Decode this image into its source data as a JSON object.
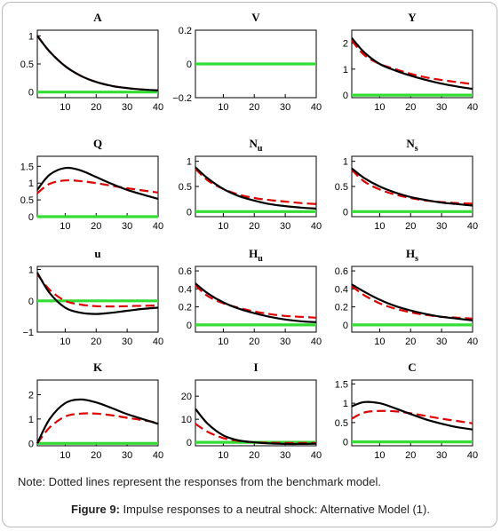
{
  "note": "Note: Dotted lines represent the responses from the benchmark model.",
  "caption": {
    "label": "Figure 9:",
    "text": " Impulse responses to a neutral shock: Alternative Model (1)."
  },
  "colors": {
    "alternative": "#000000",
    "benchmark": "#dd0000",
    "zero": "#33dd33"
  },
  "chart_data": [
    {
      "type": "line",
      "title": "A",
      "sub": "",
      "xlim": [
        1,
        40
      ],
      "ylim": [
        -0.1,
        1.1
      ],
      "xticks": [
        10,
        20,
        30,
        40
      ],
      "yticks": [
        0,
        0.5,
        1
      ],
      "ytick_labels": [
        "0",
        "0.5",
        "1"
      ],
      "x": [
        1,
        5,
        10,
        15,
        20,
        25,
        30,
        35,
        40
      ],
      "series": [
        {
          "style": "solid",
          "values": [
            1.0,
            0.72,
            0.46,
            0.29,
            0.18,
            0.11,
            0.07,
            0.045,
            0.03
          ]
        },
        {
          "style": "dashed",
          "values": [
            1.0,
            0.72,
            0.46,
            0.29,
            0.18,
            0.11,
            0.07,
            0.045,
            0.03
          ]
        },
        {
          "style": "zero",
          "values": [
            0,
            0,
            0,
            0,
            0,
            0,
            0,
            0,
            0
          ]
        }
      ]
    },
    {
      "type": "line",
      "title": "V",
      "sub": "",
      "xlim": [
        1,
        40
      ],
      "ylim": [
        -0.2,
        0.2
      ],
      "xticks": [
        10,
        20,
        30,
        40
      ],
      "yticks": [
        -0.2,
        0,
        0.2
      ],
      "ytick_labels": [
        "−0.2",
        "0",
        "0.2"
      ],
      "x": [
        1,
        40
      ],
      "series": [
        {
          "style": "zero",
          "values": [
            0,
            0
          ]
        }
      ]
    },
    {
      "type": "line",
      "title": "Y",
      "sub": "",
      "xlim": [
        1,
        40
      ],
      "ylim": [
        -0.1,
        2.5
      ],
      "xticks": [
        10,
        20,
        30,
        40
      ],
      "yticks": [
        0,
        1,
        2
      ],
      "ytick_labels": [
        "0",
        "1",
        "2"
      ],
      "x": [
        1,
        5,
        10,
        15,
        20,
        25,
        30,
        35,
        40
      ],
      "series": [
        {
          "style": "solid",
          "values": [
            2.2,
            1.65,
            1.2,
            0.95,
            0.75,
            0.58,
            0.44,
            0.33,
            0.24
          ]
        },
        {
          "style": "dashed",
          "values": [
            2.1,
            1.55,
            1.2,
            1.0,
            0.82,
            0.68,
            0.58,
            0.5,
            0.42
          ]
        },
        {
          "style": "zero",
          "values": [
            0,
            0,
            0,
            0,
            0,
            0,
            0,
            0,
            0
          ]
        }
      ]
    },
    {
      "type": "line",
      "title": "Q",
      "sub": "",
      "xlim": [
        1,
        40
      ],
      "ylim": [
        0,
        1.8
      ],
      "xticks": [
        10,
        20,
        30,
        40
      ],
      "yticks": [
        0,
        0.5,
        1,
        1.5
      ],
      "ytick_labels": [
        "0",
        "0.5",
        "1",
        "1.5"
      ],
      "x": [
        1,
        5,
        10,
        15,
        20,
        25,
        30,
        35,
        40
      ],
      "series": [
        {
          "style": "solid",
          "values": [
            0.8,
            1.25,
            1.45,
            1.38,
            1.18,
            0.98,
            0.8,
            0.66,
            0.53
          ]
        },
        {
          "style": "dashed",
          "values": [
            0.7,
            0.98,
            1.08,
            1.06,
            1.0,
            0.92,
            0.85,
            0.78,
            0.72
          ]
        },
        {
          "style": "zero",
          "values": [
            0,
            0,
            0,
            0,
            0,
            0,
            0,
            0,
            0
          ]
        }
      ]
    },
    {
      "type": "line",
      "title": "N",
      "sub": "u",
      "xlim": [
        1,
        40
      ],
      "ylim": [
        -0.1,
        1.1
      ],
      "xticks": [
        10,
        20,
        30,
        40
      ],
      "yticks": [
        0,
        0.5,
        1
      ],
      "ytick_labels": [
        "0",
        "0.5",
        "1"
      ],
      "x": [
        1,
        5,
        10,
        15,
        20,
        25,
        30,
        35,
        40
      ],
      "series": [
        {
          "style": "solid",
          "values": [
            0.88,
            0.66,
            0.45,
            0.31,
            0.22,
            0.15,
            0.11,
            0.08,
            0.06
          ]
        },
        {
          "style": "dashed",
          "values": [
            0.85,
            0.62,
            0.45,
            0.34,
            0.27,
            0.23,
            0.2,
            0.17,
            0.15
          ]
        },
        {
          "style": "zero",
          "values": [
            0,
            0,
            0,
            0,
            0,
            0,
            0,
            0,
            0
          ]
        }
      ]
    },
    {
      "type": "line",
      "title": "N",
      "sub": "s",
      "xlim": [
        1,
        40
      ],
      "ylim": [
        -0.1,
        1.1
      ],
      "xticks": [
        10,
        20,
        30,
        40
      ],
      "yticks": [
        0,
        0.5,
        1
      ],
      "ytick_labels": [
        "0",
        "0.5",
        "1"
      ],
      "x": [
        1,
        5,
        10,
        15,
        20,
        25,
        30,
        35,
        40
      ],
      "series": [
        {
          "style": "solid",
          "values": [
            0.86,
            0.67,
            0.5,
            0.38,
            0.29,
            0.23,
            0.18,
            0.15,
            0.12
          ]
        },
        {
          "style": "dashed",
          "values": [
            0.83,
            0.6,
            0.44,
            0.34,
            0.27,
            0.22,
            0.19,
            0.17,
            0.16
          ]
        },
        {
          "style": "zero",
          "values": [
            0,
            0,
            0,
            0,
            0,
            0,
            0,
            0,
            0
          ]
        }
      ]
    },
    {
      "type": "line",
      "title": "u",
      "sub": "",
      "xlim": [
        1,
        40
      ],
      "ylim": [
        -1,
        1.1
      ],
      "xticks": [
        10,
        20,
        30,
        40
      ],
      "yticks": [
        -1,
        0,
        1
      ],
      "ytick_labels": [
        "−1",
        "0",
        "1"
      ],
      "x": [
        1,
        5,
        10,
        15,
        20,
        25,
        30,
        35,
        40
      ],
      "series": [
        {
          "style": "solid",
          "values": [
            0.9,
            0.25,
            -0.22,
            -0.38,
            -0.42,
            -0.38,
            -0.32,
            -0.26,
            -0.22
          ]
        },
        {
          "style": "dashed",
          "values": [
            0.85,
            0.35,
            0.0,
            -0.12,
            -0.17,
            -0.18,
            -0.17,
            -0.16,
            -0.15
          ]
        },
        {
          "style": "zero",
          "values": [
            0,
            0,
            0,
            0,
            0,
            0,
            0,
            0,
            0
          ]
        }
      ]
    },
    {
      "type": "line",
      "title": "H",
      "sub": "u",
      "xlim": [
        1,
        40
      ],
      "ylim": [
        -0.08,
        0.65
      ],
      "xticks": [
        10,
        20,
        30,
        40
      ],
      "yticks": [
        0,
        0.2,
        0.4,
        0.6
      ],
      "ytick_labels": [
        "0",
        "0.2",
        "0.4",
        "0.6"
      ],
      "x": [
        1,
        5,
        10,
        15,
        20,
        25,
        30,
        35,
        40
      ],
      "series": [
        {
          "style": "solid",
          "values": [
            0.46,
            0.35,
            0.25,
            0.18,
            0.13,
            0.09,
            0.06,
            0.04,
            0.03
          ]
        },
        {
          "style": "dashed",
          "values": [
            0.44,
            0.32,
            0.24,
            0.19,
            0.15,
            0.12,
            0.1,
            0.09,
            0.08
          ]
        },
        {
          "style": "zero",
          "values": [
            0,
            0,
            0,
            0,
            0,
            0,
            0,
            0,
            0
          ]
        }
      ]
    },
    {
      "type": "line",
      "title": "H",
      "sub": "s",
      "xlim": [
        1,
        40
      ],
      "ylim": [
        -0.08,
        0.65
      ],
      "xticks": [
        10,
        20,
        30,
        40
      ],
      "yticks": [
        0,
        0.2,
        0.4,
        0.6
      ],
      "ytick_labels": [
        "0",
        "0.2",
        "0.4",
        "0.6"
      ],
      "x": [
        1,
        5,
        10,
        15,
        20,
        25,
        30,
        35,
        40
      ],
      "series": [
        {
          "style": "solid",
          "values": [
            0.45,
            0.37,
            0.28,
            0.21,
            0.16,
            0.12,
            0.09,
            0.07,
            0.05
          ]
        },
        {
          "style": "dashed",
          "values": [
            0.43,
            0.33,
            0.24,
            0.18,
            0.14,
            0.11,
            0.09,
            0.08,
            0.07
          ]
        },
        {
          "style": "zero",
          "values": [
            0,
            0,
            0,
            0,
            0,
            0,
            0,
            0,
            0
          ]
        }
      ]
    },
    {
      "type": "line",
      "title": "K",
      "sub": "",
      "xlim": [
        1,
        40
      ],
      "ylim": [
        -0.1,
        2.6
      ],
      "xticks": [
        10,
        20,
        30,
        40
      ],
      "yticks": [
        0,
        1,
        2
      ],
      "ytick_labels": [
        "0",
        "1",
        "2"
      ],
      "x": [
        1,
        5,
        10,
        15,
        20,
        25,
        30,
        35,
        40
      ],
      "series": [
        {
          "style": "solid",
          "values": [
            0.0,
            1.0,
            1.65,
            1.8,
            1.68,
            1.45,
            1.2,
            1.0,
            0.8
          ]
        },
        {
          "style": "dashed",
          "values": [
            0.0,
            0.65,
            1.1,
            1.22,
            1.22,
            1.15,
            1.05,
            0.95,
            0.85
          ]
        },
        {
          "style": "zero",
          "values": [
            0,
            0,
            0,
            0,
            0,
            0,
            0,
            0,
            0
          ]
        }
      ]
    },
    {
      "type": "line",
      "title": "I",
      "sub": "",
      "xlim": [
        1,
        40
      ],
      "ylim": [
        -1.5,
        27
      ],
      "xticks": [
        10,
        20,
        30,
        40
      ],
      "yticks": [
        0,
        10,
        20
      ],
      "ytick_labels": [
        "0",
        "10",
        "20"
      ],
      "x": [
        1,
        5,
        10,
        15,
        20,
        25,
        30,
        35,
        40
      ],
      "series": [
        {
          "style": "solid",
          "values": [
            14.5,
            8.0,
            3.0,
            0.8,
            0.0,
            -0.5,
            -0.7,
            -0.7,
            -0.6
          ]
        },
        {
          "style": "dashed",
          "values": [
            8.0,
            4.5,
            1.8,
            0.6,
            0.0,
            -0.2,
            -0.3,
            -0.3,
            -0.3
          ]
        },
        {
          "style": "zero",
          "values": [
            0,
            0,
            0,
            0,
            0,
            0,
            0,
            0,
            0
          ]
        }
      ]
    },
    {
      "type": "line",
      "title": "C",
      "sub": "",
      "xlim": [
        1,
        40
      ],
      "ylim": [
        -0.1,
        1.6
      ],
      "xticks": [
        10,
        20,
        30,
        40
      ],
      "yticks": [
        0,
        0.5,
        1,
        1.5
      ],
      "ytick_labels": [
        "0",
        "0.5",
        "1",
        "1.5"
      ],
      "x": [
        1,
        5,
        10,
        15,
        20,
        25,
        30,
        35,
        40
      ],
      "series": [
        {
          "style": "solid",
          "values": [
            0.92,
            1.03,
            1.0,
            0.87,
            0.72,
            0.58,
            0.47,
            0.38,
            0.32
          ]
        },
        {
          "style": "dashed",
          "values": [
            0.6,
            0.76,
            0.8,
            0.79,
            0.74,
            0.67,
            0.6,
            0.54,
            0.48
          ]
        },
        {
          "style": "zero",
          "values": [
            0,
            0,
            0,
            0,
            0,
            0,
            0,
            0,
            0
          ]
        }
      ]
    }
  ]
}
